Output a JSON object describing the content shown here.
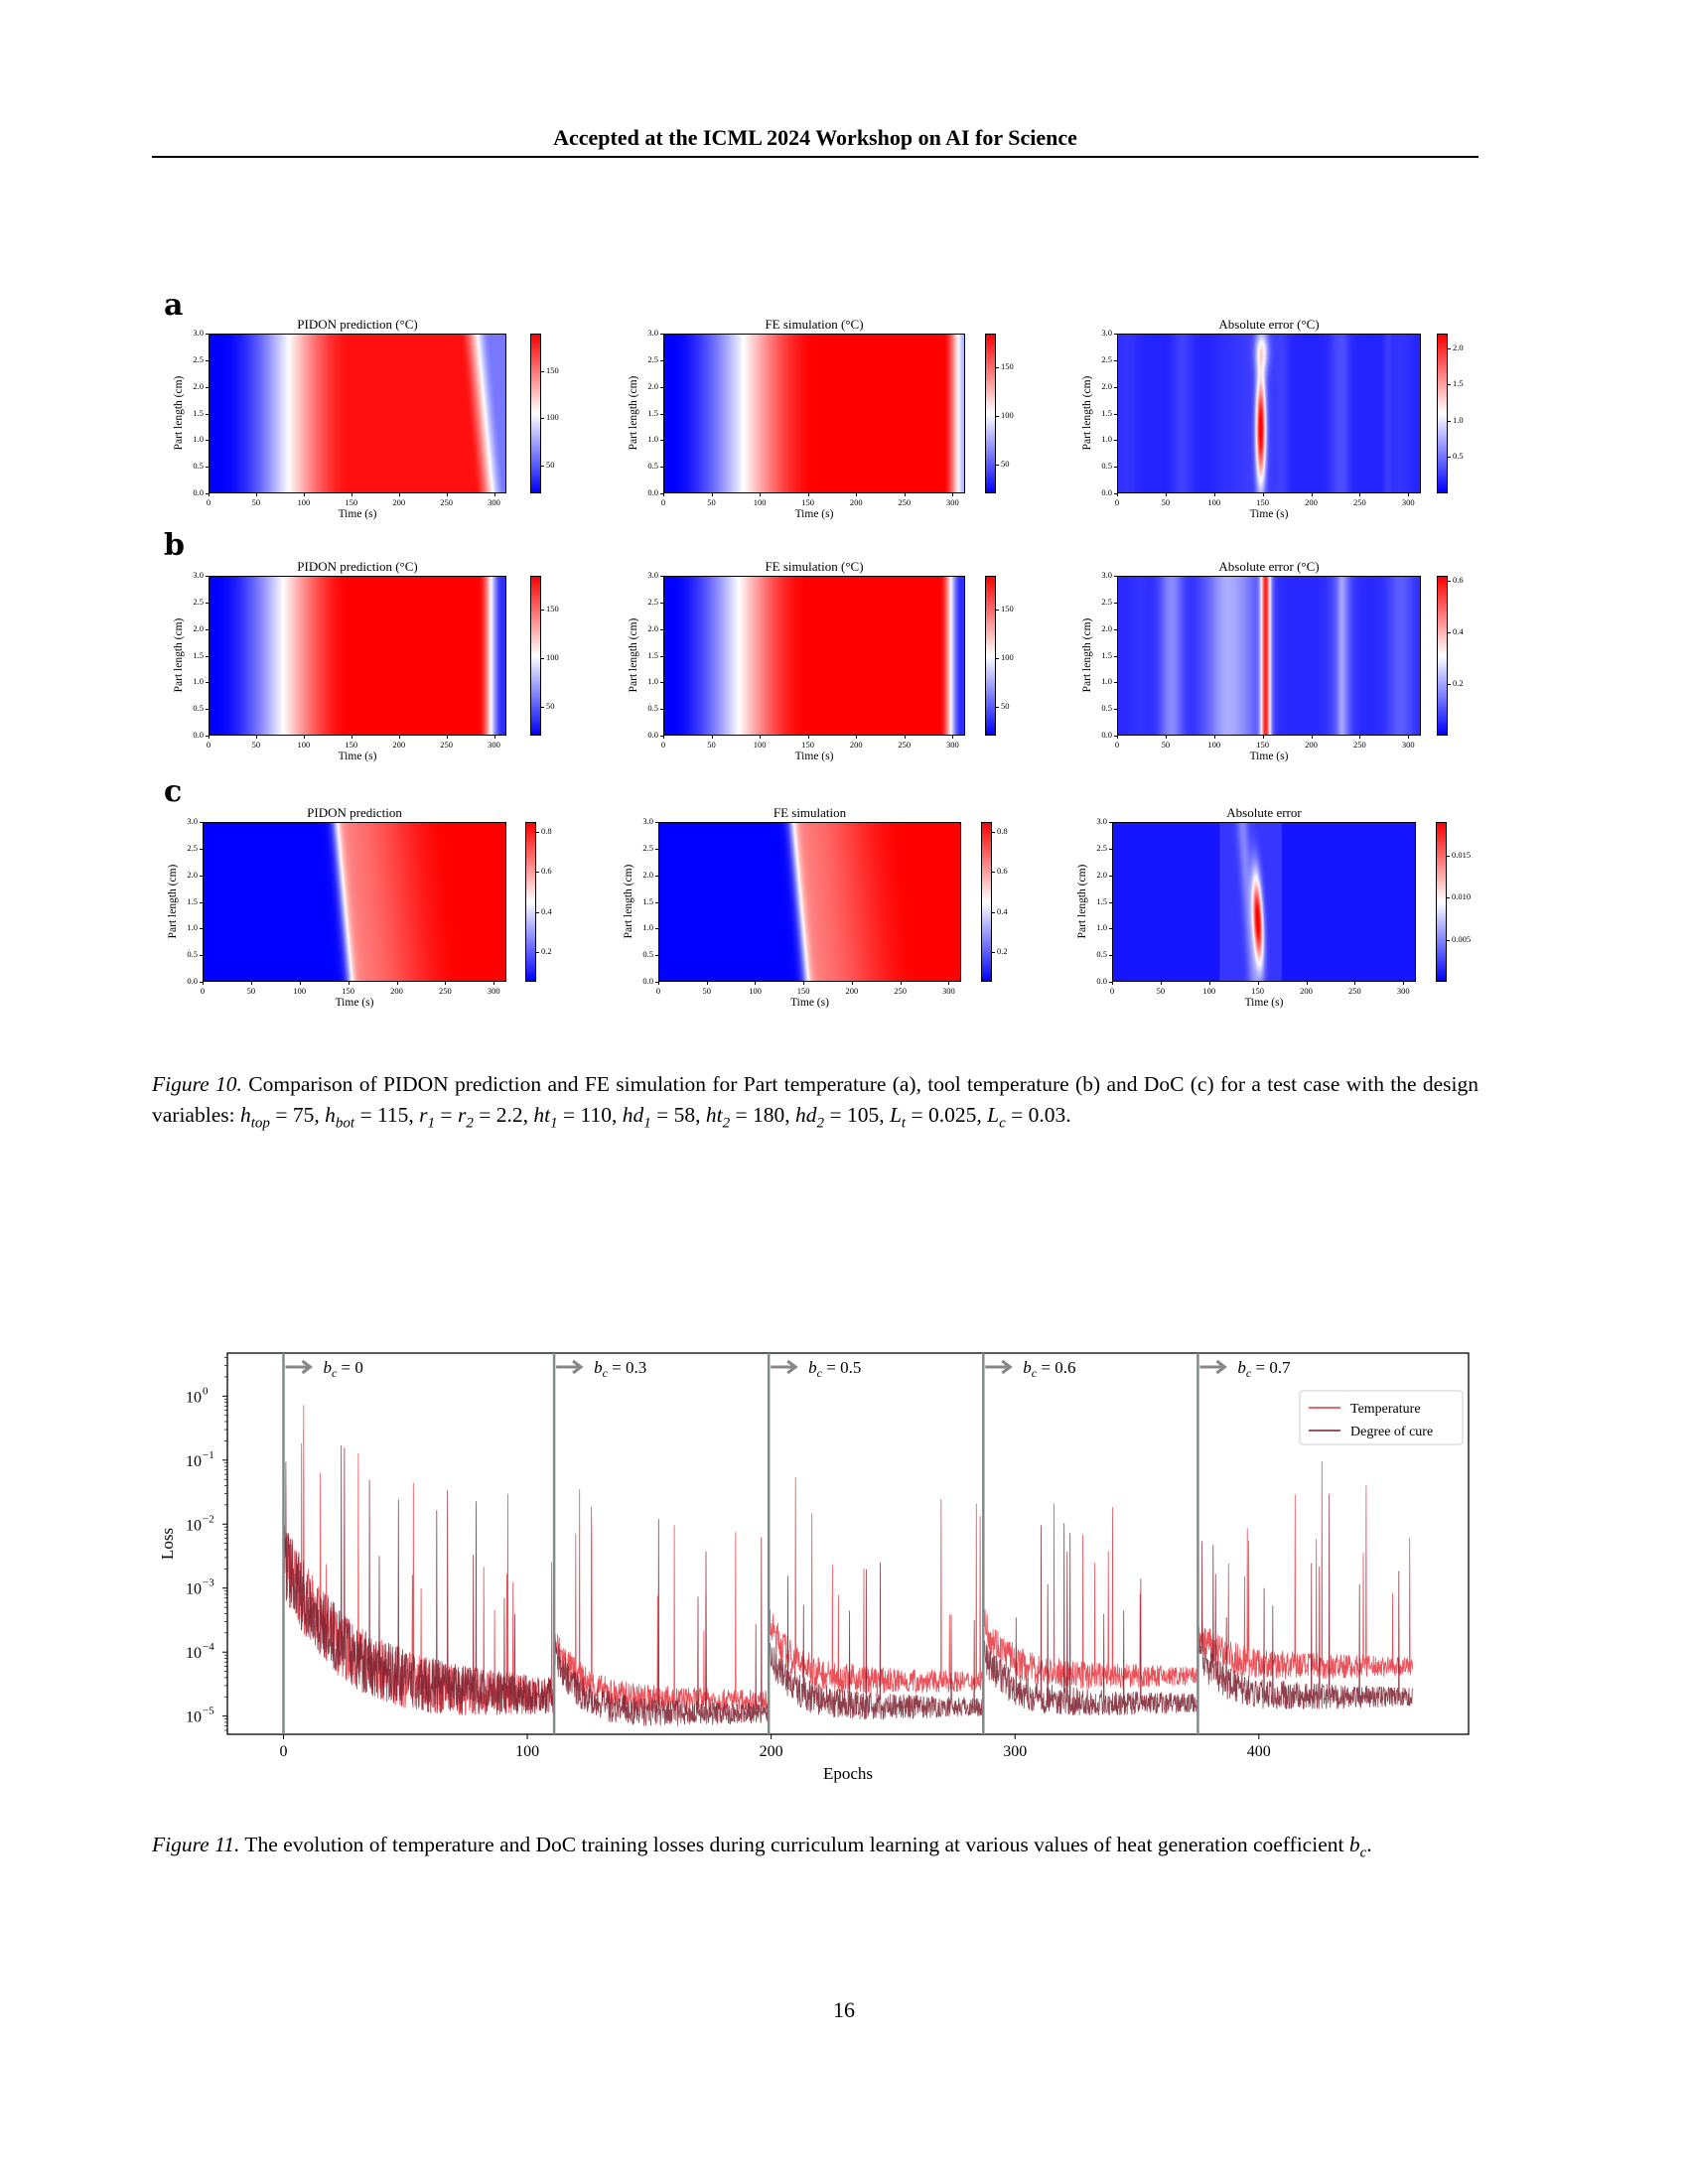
{
  "header": {
    "running_title": "Accepted at the ICML 2024 Workshop on AI for Science"
  },
  "figure10": {
    "rows": [
      {
        "label": "a",
        "panels": [
          {
            "title": "PIDON prediction (°C)",
            "vmin": 20,
            "vmax": 190,
            "cbar_ticks": [
              50,
              100,
              150
            ]
          },
          {
            "title": "FE simulation (°C)",
            "vmin": 20,
            "vmax": 185,
            "cbar_ticks": [
              50,
              100,
              150
            ]
          },
          {
            "title": "Absolute error (°C)",
            "vmin": 0,
            "vmax": 2.2,
            "cbar_ticks": [
              0.5,
              1.0,
              1.5,
              2.0
            ]
          }
        ]
      },
      {
        "label": "b",
        "panels": [
          {
            "title": "PIDON prediction (°C)",
            "vmin": 20,
            "vmax": 185,
            "cbar_ticks": [
              50,
              100,
              150
            ]
          },
          {
            "title": "FE simulation (°C)",
            "vmin": 20,
            "vmax": 185,
            "cbar_ticks": [
              50,
              100,
              150
            ]
          },
          {
            "title": "Absolute error (°C)",
            "vmin": 0,
            "vmax": 0.62,
            "cbar_ticks": [
              0.2,
              0.4,
              0.6
            ]
          }
        ]
      },
      {
        "label": "c",
        "panels": [
          {
            "title": "PIDON prediction",
            "vmin": 0.05,
            "vmax": 0.85,
            "cbar_ticks": [
              0.2,
              0.4,
              0.6,
              0.8
            ]
          },
          {
            "title": "FE simulation",
            "vmin": 0.05,
            "vmax": 0.85,
            "cbar_ticks": [
              0.2,
              0.4,
              0.6,
              0.8
            ]
          },
          {
            "title": "Absolute error",
            "vmin": 0,
            "vmax": 0.019,
            "cbar_ticks": [
              0.005,
              0.01,
              0.015
            ]
          }
        ]
      }
    ],
    "xlabel": "Time (s)",
    "ylabel": "Part length (cm)",
    "xticks": [
      0,
      50,
      100,
      150,
      200,
      250,
      300
    ],
    "yticks": [
      "0.0",
      "0.5",
      "1.0",
      "1.5",
      "2.0",
      "2.5",
      "3.0"
    ],
    "xlim": [
      0,
      313
    ],
    "ylim": [
      0,
      3
    ],
    "colormap": "bwr",
    "caption": {
      "label": "Figure 10.",
      "text": "Comparison of PIDON prediction and FE simulation for Part temperature (a), tool temperature (b) and DoC (c) for a test case with the design variables:",
      "variables": [
        {
          "sym": "h",
          "sub": "top",
          "val": "75"
        },
        {
          "sym": "h",
          "sub": "bot",
          "val": "115"
        },
        {
          "sym": "r",
          "sub": "1",
          "sym2": "r",
          "sub2": "2",
          "val": "2.2"
        },
        {
          "sym": "ht",
          "sub": "1",
          "val": "110"
        },
        {
          "sym": "hd",
          "sub": "1",
          "val": "58"
        },
        {
          "sym": "ht",
          "sub": "2",
          "val": "180"
        },
        {
          "sym": "hd",
          "sub": "2",
          "val": "105"
        },
        {
          "sym": "L",
          "sub": "t",
          "val": "0.025"
        },
        {
          "sym": "L",
          "sub": "c",
          "val": "0.03"
        }
      ]
    }
  },
  "chart_data": {
    "type": "line",
    "xlabel": "Epochs",
    "ylabel": "Loss",
    "xlim": [
      -23,
      486
    ],
    "ylim": [
      5.2e-06,
      4.7
    ],
    "yscale": "log",
    "xticks": [
      0,
      100,
      200,
      300,
      400
    ],
    "yticks": [
      {
        "base": "10",
        "exp": "0"
      },
      {
        "base": "10",
        "exp": "−1"
      },
      {
        "base": "10",
        "exp": "−2"
      },
      {
        "base": "10",
        "exp": "−3"
      },
      {
        "base": "10",
        "exp": "−4"
      },
      {
        "base": "10",
        "exp": "−5"
      }
    ],
    "ytick_values": [
      1,
      0.1,
      0.01,
      0.001,
      0.0001,
      1e-05
    ],
    "legend_position": "top-right",
    "stages": [
      {
        "label_sym": "b",
        "label_sub": "c",
        "label_val": "0",
        "start_epoch": 0
      },
      {
        "label_sym": "b",
        "label_sub": "c",
        "label_val": "0.3",
        "start_epoch": 111
      },
      {
        "label_sym": "b",
        "label_sub": "c",
        "label_val": "0.5",
        "start_epoch": 199
      },
      {
        "label_sym": "b",
        "label_sub": "c",
        "label_val": "0.6",
        "start_epoch": 287
      },
      {
        "label_sym": "b",
        "label_sub": "c",
        "label_val": "0.7",
        "start_epoch": 375
      }
    ],
    "end_epoch": 463,
    "series": [
      {
        "name": "Temperature",
        "color": "#e8323c",
        "stage_start_loss": [
          0.003,
          0.00015,
          0.0003,
          0.0003,
          0.0002
        ],
        "stage_end_loss": [
          2e-05,
          1.8e-05,
          3.5e-05,
          4.2e-05,
          6e-05
        ]
      },
      {
        "name": "Degree of cure",
        "color": "#7a1f2e",
        "stage_start_loss": [
          0.003,
          0.0001,
          0.0001,
          0.0001,
          0.0001
        ],
        "stage_end_loss": [
          2e-05,
          1.1e-05,
          1.4e-05,
          1.6e-05,
          2e-05
        ]
      }
    ],
    "stage_line_color": "#808a8a"
  },
  "figure11": {
    "caption": {
      "label": "Figure 11.",
      "text": "The evolution of temperature and DoC training losses during curriculum learning at various values of heat generation coefficient",
      "sym": "b",
      "sub": "c",
      "tail": "."
    }
  },
  "page_number": "16"
}
